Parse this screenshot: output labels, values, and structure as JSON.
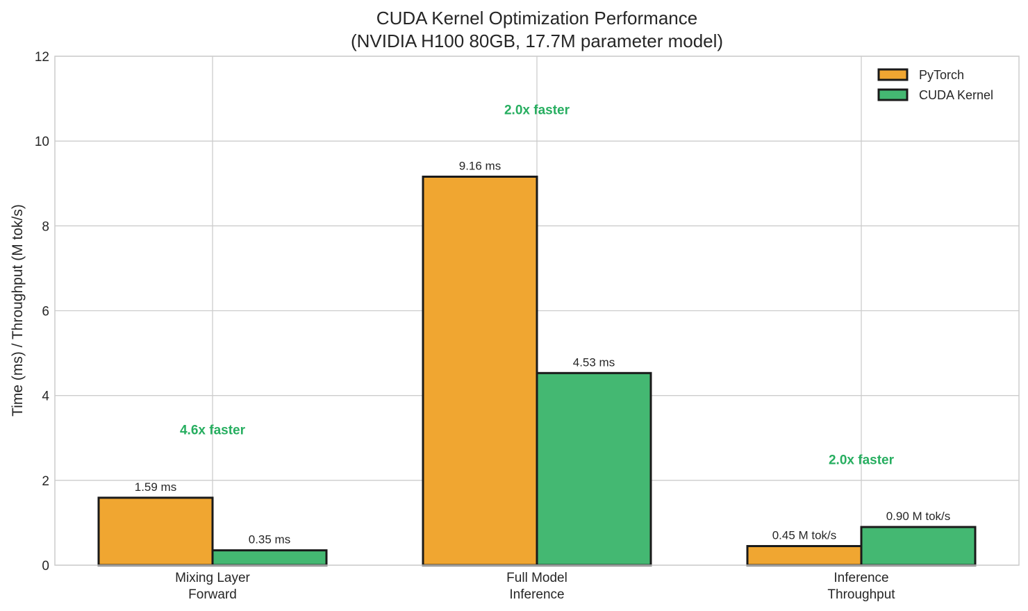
{
  "chart_data": {
    "type": "bar",
    "title": "CUDA Kernel Optimization Performance",
    "subtitle": "(NVIDIA H100 80GB, 17.7M parameter model)",
    "xlabel": "",
    "ylabel": "Time (ms) / Throughput (M tok/s)",
    "ylim": [
      0,
      12
    ],
    "yticks": [
      "0",
      "2",
      "4",
      "6",
      "8",
      "10",
      "12"
    ],
    "grid": true,
    "legend_placement": "top-right",
    "categories": [
      [
        "Mixing Layer",
        "Forward"
      ],
      [
        "Full Model",
        "Inference"
      ],
      [
        "Inference",
        "Throughput"
      ]
    ],
    "series": [
      {
        "name": "PyTorch",
        "color": "#F0A631",
        "values": [
          1.59,
          9.16,
          0.45
        ],
        "labels": [
          "1.59 ms",
          "9.16 ms",
          "0.45 M tok/s"
        ]
      },
      {
        "name": "CUDA Kernel",
        "color": "#44B872",
        "values": [
          0.35,
          4.53,
          0.9
        ],
        "labels": [
          "0.35 ms",
          "4.53 ms",
          "0.90 M tok/s"
        ]
      }
    ],
    "annotations": [
      {
        "text": "4.6x faster",
        "category": 0,
        "y": 3.2
      },
      {
        "text": "2.0x faster",
        "category": 1,
        "y": 10.75
      },
      {
        "text": "2.0x faster",
        "category": 2,
        "y": 2.5
      }
    ],
    "annotation_color": "#27AE60"
  }
}
